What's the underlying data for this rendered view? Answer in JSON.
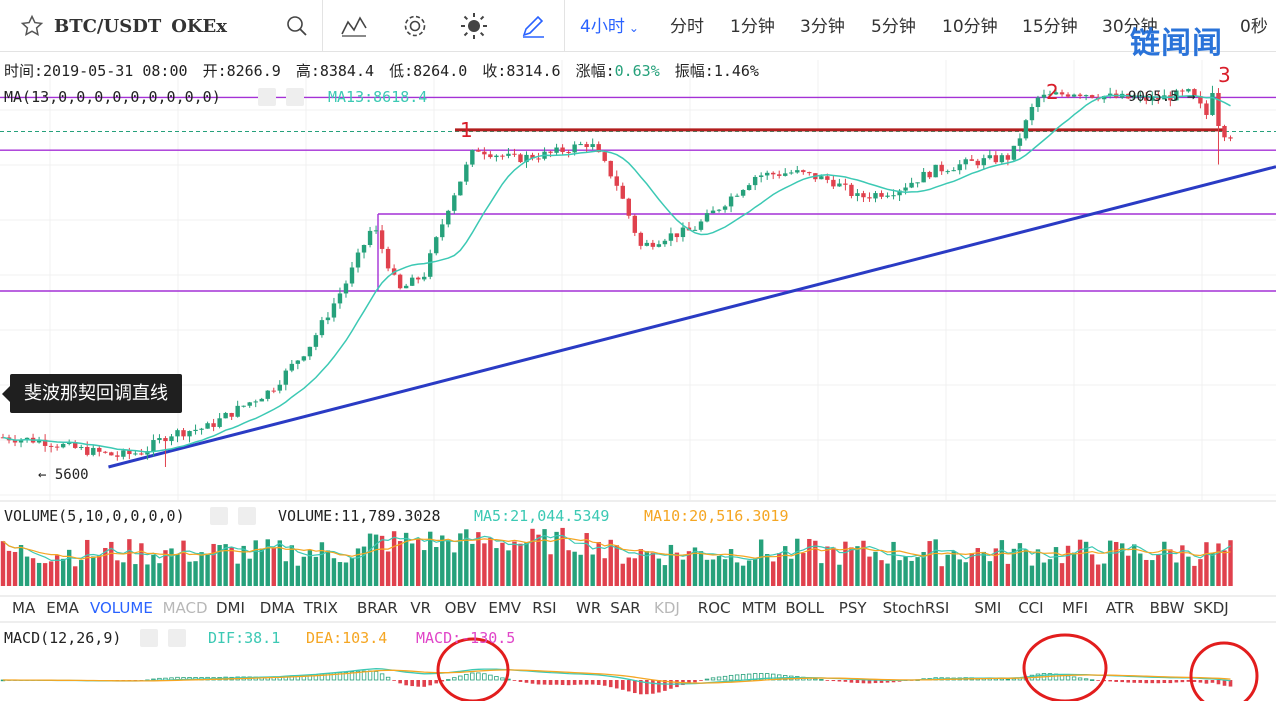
{
  "toolbar": {
    "symbol": "BTC/USDT",
    "exchange": "OKEx",
    "active_interval": "4小时",
    "intervals": [
      "分时",
      "1分钟",
      "3分钟",
      "5分钟",
      "10分钟",
      "15分钟",
      "30分钟"
    ],
    "overflow_text": "0秒",
    "watermark": "链闻闻"
  },
  "ohlc_bar": {
    "time_label": "时间:",
    "time": "2019-05-31 08:00",
    "open_label": "开:",
    "open": "8266.9",
    "high_label": "高:",
    "high": "8384.4",
    "low_label": "低:",
    "low": "8264.0",
    "close_label": "收:",
    "close": "8314.6",
    "change_label": "涨幅:",
    "change": "0.63%",
    "amplitude_label": "振幅:",
    "amplitude": "1.46%"
  },
  "ma_legend": {
    "name": "MA(13,0,0,0,0,0,0,0,0,0)",
    "value": "MA13:8618.4"
  },
  "volume_legend": {
    "name": "VOLUME(5,10,0,0,0,0)",
    "volume": "VOLUME:11,789.3028",
    "ma5": "MA5:21,044.5349",
    "ma10": "MA10:20,516.3019"
  },
  "macd_legend": {
    "name": "MACD(12,26,9)",
    "dif": "DIF:38.1",
    "dea": "DEA:103.4",
    "macd": "MACD:-130.5"
  },
  "indicators": [
    "MA",
    "EMA",
    "VOLUME",
    "MACD",
    "DMI",
    "DMA",
    "TRIX",
    "BRAR",
    "VR",
    "OBV",
    "EMV",
    "RSI",
    "WR",
    "SAR",
    "KDJ",
    "ROC",
    "MTM",
    "BOLL",
    "PSY",
    "StochRSI",
    "SMI",
    "CCI",
    "MFI",
    "ATR",
    "BBW",
    "SKDJ"
  ],
  "active_indicator": "VOLUME",
  "disabled_indicators": [
    "MACD",
    "KDJ"
  ],
  "tooltip": "斐波那契回调直线",
  "annotations": {
    "low_marker": "← 5600",
    "high_marker": "9065.5 →",
    "label1": "1",
    "label2": "2",
    "label3": "3"
  },
  "colors": {
    "up": "#26a17b",
    "down": "#e0414d",
    "ma": "#3cc9b4",
    "dif": "#3cc9b4",
    "dea": "#f5a623",
    "macd_text": "#e045c8",
    "fib": "#a431d6",
    "trend": "#2a3bc4",
    "resistance": "#b21e1e",
    "accent": "#2962ff",
    "circle": "#e21d1d"
  },
  "chart_data": {
    "type": "candlestick",
    "interval": "4小时",
    "y_range": [
      5300,
      9300
    ],
    "fib_levels": [
      8960,
      8480,
      7900,
      7200
    ],
    "resistance_level": 8665,
    "trendline": {
      "from": [
        0.085,
        5600
      ],
      "to": [
        1.0,
        8330
      ]
    },
    "extremes": {
      "low": 5600,
      "high": 9065.5
    },
    "ohlc_anchors": [
      [
        0.0,
        5870
      ],
      [
        0.03,
        5840
      ],
      [
        0.06,
        5760
      ],
      [
        0.09,
        5700
      ],
      [
        0.11,
        5740
      ],
      [
        0.13,
        5900
      ],
      [
        0.16,
        5960
      ],
      [
        0.18,
        6100
      ],
      [
        0.21,
        6300
      ],
      [
        0.24,
        6700
      ],
      [
        0.27,
        7300
      ],
      [
        0.29,
        7800
      ],
      [
        0.31,
        7200
      ],
      [
        0.33,
        7350
      ],
      [
        0.35,
        8000
      ],
      [
        0.37,
        8500
      ],
      [
        0.4,
        8400
      ],
      [
        0.43,
        8450
      ],
      [
        0.46,
        8550
      ],
      [
        0.48,
        8200
      ],
      [
        0.5,
        7600
      ],
      [
        0.52,
        7700
      ],
      [
        0.54,
        7750
      ],
      [
        0.57,
        8050
      ],
      [
        0.59,
        8250
      ],
      [
        0.62,
        8280
      ],
      [
        0.65,
        8200
      ],
      [
        0.67,
        8050
      ],
      [
        0.7,
        8120
      ],
      [
        0.73,
        8300
      ],
      [
        0.76,
        8370
      ],
      [
        0.79,
        8420
      ],
      [
        0.81,
        8950
      ],
      [
        0.84,
        9010
      ],
      [
        0.87,
        8960
      ],
      [
        0.9,
        8940
      ],
      [
        0.93,
        9000
      ],
      [
        0.95,
        8700
      ],
      [
        0.96,
        8620
      ]
    ]
  }
}
